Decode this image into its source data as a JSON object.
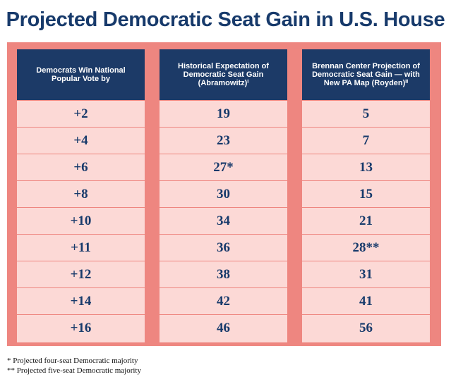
{
  "chart_data": {
    "type": "table",
    "title": "Projected Democratic Seat Gain in U.S. House",
    "columns": [
      "Democrats Win National Popular Vote by",
      "Historical Expectation of Democratic Seat Gain (Abramowitz)ⁱ",
      "Brennan Center Projection of Democratic Seat Gain — with New PA Map (Royden)ⁱⁱ"
    ],
    "rows": [
      [
        "+2",
        "19",
        "5"
      ],
      [
        "+4",
        "23",
        "7"
      ],
      [
        "+6",
        "27*",
        "13"
      ],
      [
        "+8",
        "30",
        "15"
      ],
      [
        "+10",
        "34",
        "21"
      ],
      [
        "+11",
        "36",
        "28**"
      ],
      [
        "+12",
        "38",
        "31"
      ],
      [
        "+14",
        "42",
        "41"
      ],
      [
        "+16",
        "46",
        "56"
      ]
    ],
    "footnotes": [
      "* Projected four-seat Democratic majority",
      "** Projected five-seat Democratic majority"
    ]
  }
}
